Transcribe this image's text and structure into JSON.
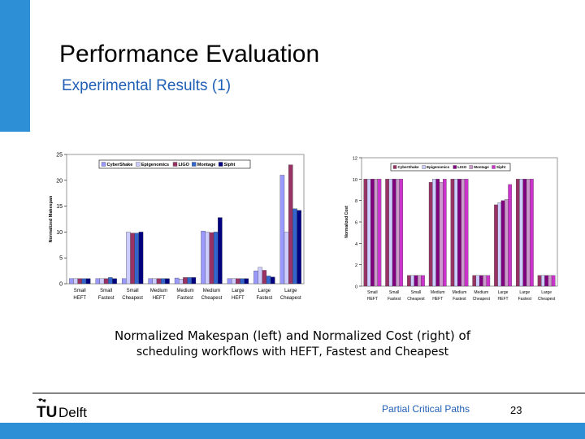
{
  "slide": {
    "title": "Performance Evaluation",
    "subtitle": "Experimental Results (1)",
    "caption_line1": "Normalized Makespan (left) and Normalized Cost (right) of",
    "caption_line2": "scheduling workflows with HEFT, Fastest and Cheapest",
    "footer_label": "Partial Critical Paths",
    "page_number": "23",
    "logo_text": "Delft"
  },
  "colors": {
    "accent": "#2d8fd5",
    "subtitle_blue": "#1f5fb5"
  },
  "chart_data": [
    {
      "type": "bar",
      "title": "",
      "xlabel": "",
      "ylabel": "Normalized Makespan",
      "ylim": [
        0,
        25
      ],
      "yticks": [
        0,
        5,
        10,
        15,
        20,
        25
      ],
      "grid": false,
      "legend": "top",
      "categories": [
        [
          "Small",
          "HEFT"
        ],
        [
          "Small",
          "Fastest"
        ],
        [
          "Small",
          "Cheapest"
        ],
        [
          "Medium",
          "HEFT"
        ],
        [
          "Medium",
          "Fastest"
        ],
        [
          "Medium",
          "Cheapest"
        ],
        [
          "Large",
          "HEFT"
        ],
        [
          "Large",
          "Fastest"
        ],
        [
          "Large",
          "Cheapest"
        ]
      ],
      "series": [
        {
          "name": "CyberShake",
          "color": "#9999ff",
          "values": [
            1,
            1,
            1,
            1,
            1.1,
            10.2,
            1,
            2.5,
            21
          ]
        },
        {
          "name": "Epigenomics",
          "color": "#ccccff",
          "values": [
            1,
            1,
            10,
            1,
            0.9,
            10,
            1,
            3.2,
            10
          ]
        },
        {
          "name": "LIGO",
          "color": "#993366",
          "values": [
            1,
            1,
            9.8,
            1,
            1.2,
            9.9,
            1,
            2.6,
            23
          ]
        },
        {
          "name": "Montage",
          "color": "#3366cc",
          "values": [
            1,
            1.2,
            9.8,
            1,
            1.2,
            10,
            1,
            1.5,
            14.5
          ]
        },
        {
          "name": "Sipht",
          "color": "#000080",
          "values": [
            1,
            1,
            10,
            1,
            1.2,
            12.8,
            1,
            1.3,
            14.2
          ]
        }
      ]
    },
    {
      "type": "bar",
      "title": "",
      "xlabel": "",
      "ylabel": "Normalized Cost",
      "ylim": [
        0,
        12
      ],
      "yticks": [
        0,
        2,
        4,
        6,
        8,
        10,
        12
      ],
      "grid": false,
      "legend": "top",
      "categories": [
        [
          "Small",
          "HEFT"
        ],
        [
          "Small",
          "Fastest"
        ],
        [
          "Small",
          "Cheapest"
        ],
        [
          "Medium",
          "HEFT"
        ],
        [
          "Medium",
          "Fastest"
        ],
        [
          "Medium",
          "Cheapest"
        ],
        [
          "Large",
          "HEFT"
        ],
        [
          "Large",
          "Fastest"
        ],
        [
          "Large",
          "Cheapest"
        ]
      ],
      "series": [
        {
          "name": "CyberShake",
          "color": "#993366",
          "values": [
            10,
            10,
            1,
            9.7,
            10,
            1,
            7.6,
            10,
            1
          ]
        },
        {
          "name": "Epigenomics",
          "color": "#ccccff",
          "values": [
            10,
            10,
            1,
            10,
            10,
            1,
            7.8,
            10,
            1
          ]
        },
        {
          "name": "LIGO",
          "color": "#800080",
          "values": [
            10,
            10,
            1,
            10,
            10,
            1,
            8,
            10,
            1
          ]
        },
        {
          "name": "Montage",
          "color": "#cc99cc",
          "values": [
            10,
            10,
            1,
            9.7,
            10,
            1,
            8.1,
            10,
            1
          ]
        },
        {
          "name": "Sipht",
          "color": "#cc33cc",
          "values": [
            10,
            10,
            1,
            10,
            10,
            1,
            9.5,
            10,
            1
          ]
        }
      ]
    }
  ]
}
